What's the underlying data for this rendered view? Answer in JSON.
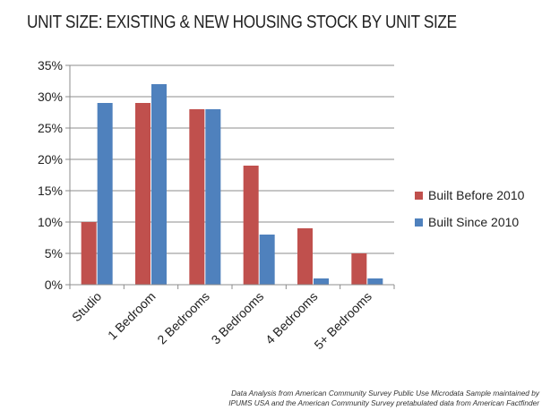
{
  "chart_data": {
    "type": "bar",
    "title": "UNIT SIZE: EXISTING & NEW HOUSING STOCK BY UNIT SIZE",
    "categories": [
      "Studio",
      "1 Bedroom",
      "2 Bedrooms",
      "3 Bedrooms",
      "4 Bedrooms",
      "5+ Bedrooms"
    ],
    "series": [
      {
        "name": "Built Before 2010",
        "values": [
          10,
          29,
          28,
          19,
          9,
          5
        ],
        "color": "#c0504d"
      },
      {
        "name": "Built Since 2010",
        "values": [
          29,
          32,
          28,
          8,
          1,
          1
        ],
        "color": "#4f81bd"
      }
    ],
    "ylim": [
      0,
      35
    ],
    "yticks": [
      0,
      5,
      10,
      15,
      20,
      25,
      30,
      35
    ],
    "ytick_labels": [
      "0%",
      "5%",
      "10%",
      "15%",
      "20%",
      "25%",
      "30%",
      "35%"
    ],
    "xlabel": "",
    "ylabel": "",
    "grid": true,
    "legend_position": "right"
  },
  "source_note": {
    "line1": "Data Analysis from American Community Survey Public Use Microdata Sample maintained by",
    "line2": "IPUMS USA and the American Community Survey pretabulated data from American Factfinder"
  }
}
